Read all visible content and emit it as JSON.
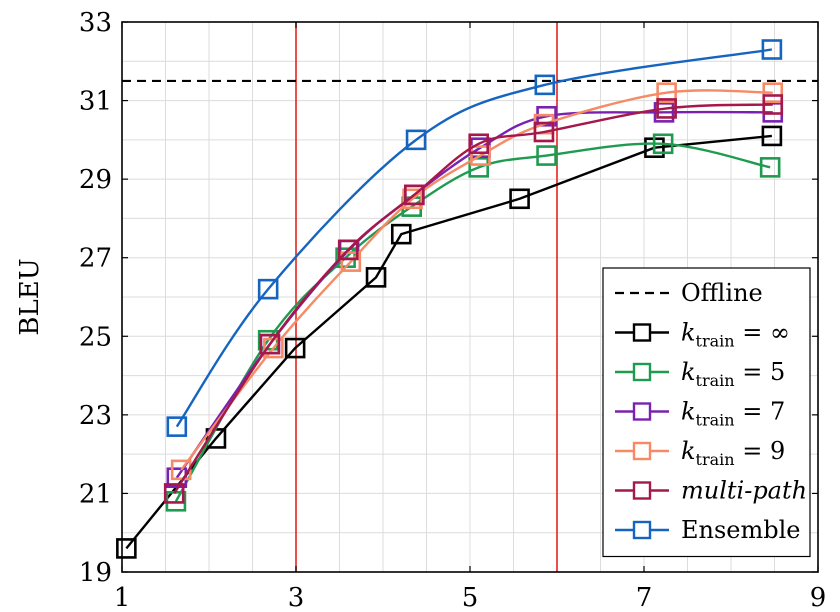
{
  "chart_data": {
    "type": "line",
    "title": "",
    "xlabel": "",
    "ylabel": "BLEU",
    "xlim": [
      1,
      9
    ],
    "ylim": [
      19,
      33
    ],
    "xticks": [
      1,
      3,
      5,
      7,
      9
    ],
    "yticks": [
      19,
      21,
      23,
      25,
      27,
      29,
      31,
      33
    ],
    "grid": true,
    "legend_position": "bottom-right",
    "vertical_lines": [
      3,
      6
    ],
    "offline_bleu": 31.5,
    "series": [
      {
        "name": "Offline",
        "legend_label": {
          "prefix": "Offline",
          "italic": false
        },
        "color": "#000000",
        "style": "dashed",
        "x": [
          1,
          9
        ],
        "y": [
          31.5,
          31.5
        ]
      },
      {
        "name": "k_train = ∞",
        "legend_label": {
          "sub": "train",
          "value": "∞"
        },
        "color": "#000000",
        "style": "solid-marker",
        "smooth": false,
        "x": [
          1.05,
          2.08,
          2.99,
          3.92,
          4.21,
          5.57,
          7.12,
          8.47
        ],
        "y": [
          19.6,
          22.4,
          24.7,
          26.5,
          27.6,
          28.5,
          29.8,
          30.1
        ]
      },
      {
        "name": "k_train = 5",
        "legend_label": {
          "sub": "train",
          "value": "5"
        },
        "color": "#1f9b4f",
        "style": "solid-marker",
        "smooth": true,
        "x": [
          1.62,
          2.68,
          3.57,
          4.33,
          5.1,
          5.88,
          7.22,
          8.45
        ],
        "y": [
          20.8,
          24.9,
          27.0,
          28.3,
          29.3,
          29.6,
          29.9,
          29.3
        ]
      },
      {
        "name": "k_train = 7",
        "legend_label": {
          "sub": "train",
          "value": "7"
        },
        "color": "#7a22b0",
        "style": "solid-marker",
        "smooth": true,
        "x": [
          1.63,
          2.7,
          3.61,
          4.36,
          5.12,
          5.88,
          7.23,
          8.48
        ],
        "y": [
          21.4,
          24.8,
          27.2,
          28.6,
          29.8,
          30.6,
          30.7,
          30.7
        ]
      },
      {
        "name": "k_train = 9",
        "legend_label": {
          "sub": "train",
          "value": "9"
        },
        "color": "#f58a65",
        "style": "solid-marker",
        "smooth": true,
        "x": [
          1.68,
          2.74,
          3.63,
          4.34,
          5.12,
          5.85,
          7.26,
          8.48
        ],
        "y": [
          21.6,
          24.7,
          26.9,
          28.5,
          29.6,
          30.4,
          31.2,
          31.2
        ]
      },
      {
        "name": "multi-path",
        "legend_label": {
          "prefix": "multi-path",
          "italic": true
        },
        "color": "#a4184b",
        "style": "solid-marker",
        "smooth": true,
        "x": [
          1.6,
          2.7,
          3.6,
          4.36,
          5.1,
          5.85,
          7.26,
          8.48
        ],
        "y": [
          21.0,
          24.8,
          27.2,
          28.6,
          29.9,
          30.2,
          30.8,
          30.9
        ]
      },
      {
        "name": "Ensemble",
        "legend_label": {
          "prefix": "Ensemble",
          "italic": false
        },
        "color": "#1565c0",
        "style": "solid-marker",
        "smooth": true,
        "x": [
          1.63,
          2.68,
          4.38,
          5.86,
          8.47
        ],
        "y": [
          22.7,
          26.2,
          30.0,
          31.4,
          32.3
        ]
      }
    ]
  }
}
